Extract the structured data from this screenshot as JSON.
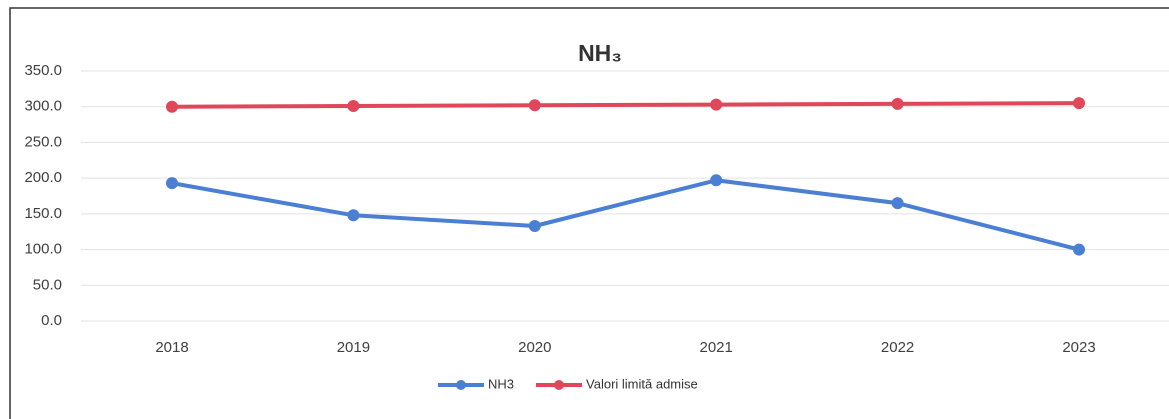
{
  "chart_data": {
    "type": "line",
    "title": "NH₃",
    "categories": [
      "2018",
      "2019",
      "2020",
      "2021",
      "2022",
      "2023"
    ],
    "series": [
      {
        "name": "NH3",
        "color": "#4a7fd4",
        "values": [
          193,
          148,
          133,
          197,
          165,
          100
        ]
      },
      {
        "name": "Valori limită admise",
        "color": "#e0475a",
        "values": [
          300,
          301,
          302,
          303,
          304,
          305
        ]
      }
    ],
    "ylim": [
      0,
      350
    ],
    "yticks": [
      {
        "value": 0,
        "label": "0.0"
      },
      {
        "value": 50,
        "label": "50.0"
      },
      {
        "value": 100,
        "label": "100.0"
      },
      {
        "value": 150,
        "label": "150.0"
      },
      {
        "value": 200,
        "label": "200.0"
      },
      {
        "value": 250,
        "label": "250.0"
      },
      {
        "value": 300,
        "label": "300.0"
      },
      {
        "value": 350,
        "label": "350.0"
      }
    ],
    "grid": true,
    "legend": "bottom"
  }
}
